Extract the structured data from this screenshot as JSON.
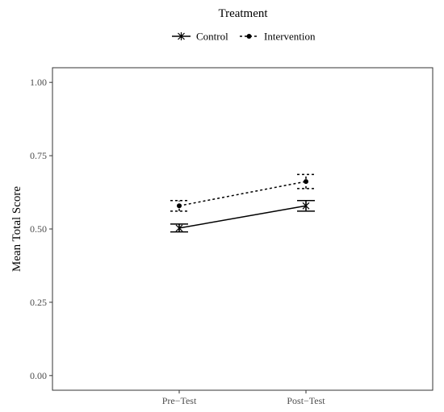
{
  "chart_data": {
    "type": "line",
    "title": "",
    "xlabel": "",
    "ylabel": "Mean Total Score",
    "categories": [
      "Pre−Test",
      "Post−Test"
    ],
    "ylim": [
      -0.05,
      1.05
    ],
    "yticks": [
      "0.00",
      "0.25",
      "0.50",
      "0.75",
      "1.00"
    ],
    "grid": false,
    "legend": {
      "title": "Treatment",
      "position": "top"
    },
    "series": [
      {
        "name": "Control",
        "values": [
          0.503,
          0.579
        ],
        "error_low": [
          0.49,
          0.561
        ],
        "error_high": [
          0.517,
          0.597
        ],
        "line_style": "solid",
        "marker": "asterisk",
        "color": "#000000"
      },
      {
        "name": "Intervention",
        "values": [
          0.579,
          0.662
        ],
        "error_low": [
          0.561,
          0.638
        ],
        "error_high": [
          0.597,
          0.686
        ],
        "line_style": "dotted",
        "marker": "dot",
        "color": "#000000"
      }
    ]
  }
}
